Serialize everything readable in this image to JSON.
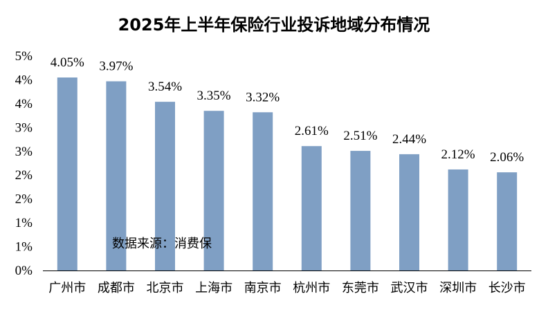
{
  "chart_data": {
    "type": "bar",
    "title": "2025年上半年保险行业投诉地域分布情况",
    "categories": [
      "广州市",
      "成都市",
      "北京市",
      "上海市",
      "南京市",
      "杭州市",
      "东莞市",
      "武汉市",
      "深圳市",
      "长沙市"
    ],
    "values": [
      4.05,
      3.97,
      3.54,
      3.35,
      3.32,
      2.61,
      2.51,
      2.44,
      2.12,
      2.06
    ],
    "value_labels": [
      "4.05%",
      "3.97%",
      "3.54%",
      "3.35%",
      "3.32%",
      "2.61%",
      "2.51%",
      "2.44%",
      "2.12%",
      "2.06%"
    ],
    "y_tick_labels": [
      "0%",
      "1%",
      "1%",
      "2%",
      "2%",
      "3%",
      "3%",
      "4%",
      "4%",
      "5%"
    ],
    "ylim": [
      0,
      4.5
    ],
    "bar_color": "#7F9FC4",
    "annotation": "数据来源：消费保",
    "grid": false,
    "legend": false
  }
}
